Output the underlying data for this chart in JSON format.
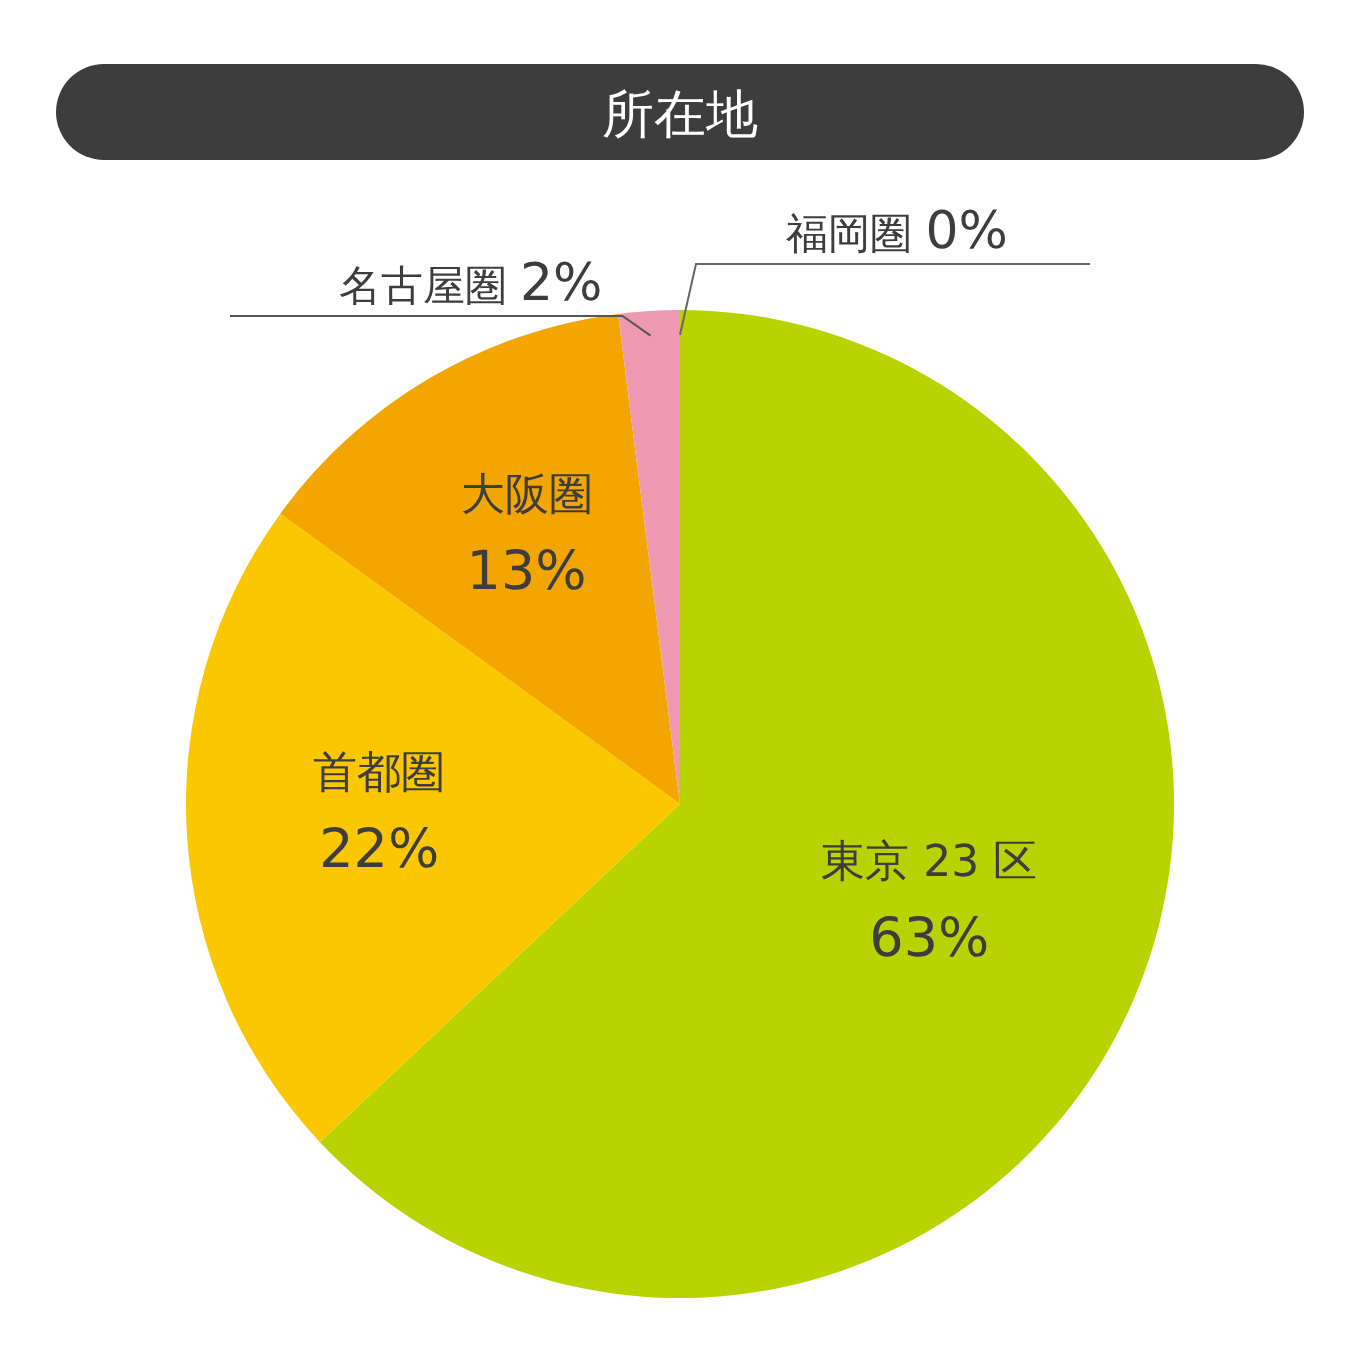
{
  "chart_data": {
    "type": "pie",
    "title": "所在地",
    "categories": [
      "東京 23 区",
      "首都圏",
      "大阪圏",
      "名古屋圏",
      "福岡圏"
    ],
    "values": [
      63,
      22,
      13,
      2,
      0
    ],
    "value_labels": [
      "63%",
      "22%",
      "13%",
      "2%",
      "0%"
    ],
    "colors": [
      "#b9d300",
      "#fbc800",
      "#f4a600",
      "#ef98b2",
      "#666666"
    ]
  }
}
